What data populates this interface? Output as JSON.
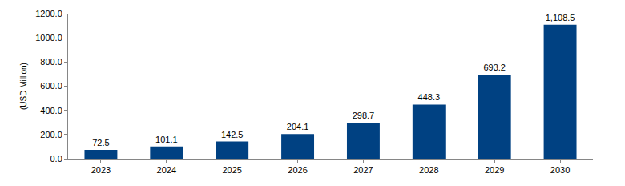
{
  "chart_data": {
    "type": "bar",
    "y_label": "(USD Million)",
    "categories": [
      "2023",
      "2024",
      "2025",
      "2026",
      "2027",
      "2028",
      "2029",
      "2030"
    ],
    "values": [
      72.5,
      101.1,
      142.5,
      204.1,
      298.7,
      448.3,
      693.2,
      1108.5
    ],
    "value_labels": [
      "72.5",
      "101.1",
      "142.5",
      "204.1",
      "298.7",
      "448.3",
      "693.2",
      "1,108.5"
    ],
    "color": "#004182",
    "ylim": [
      0,
      1200
    ],
    "yticks": [
      {
        "value": 0,
        "label": "0.0"
      },
      {
        "value": 200,
        "label": "200.0"
      },
      {
        "value": 400,
        "label": "400.0"
      },
      {
        "value": 600,
        "label": "600.0"
      },
      {
        "value": 800,
        "label": "800.0"
      },
      {
        "value": 1000,
        "label": "1000.0"
      },
      {
        "value": 1200,
        "label": "1200.0"
      }
    ],
    "grid": false,
    "data_labels": true
  }
}
